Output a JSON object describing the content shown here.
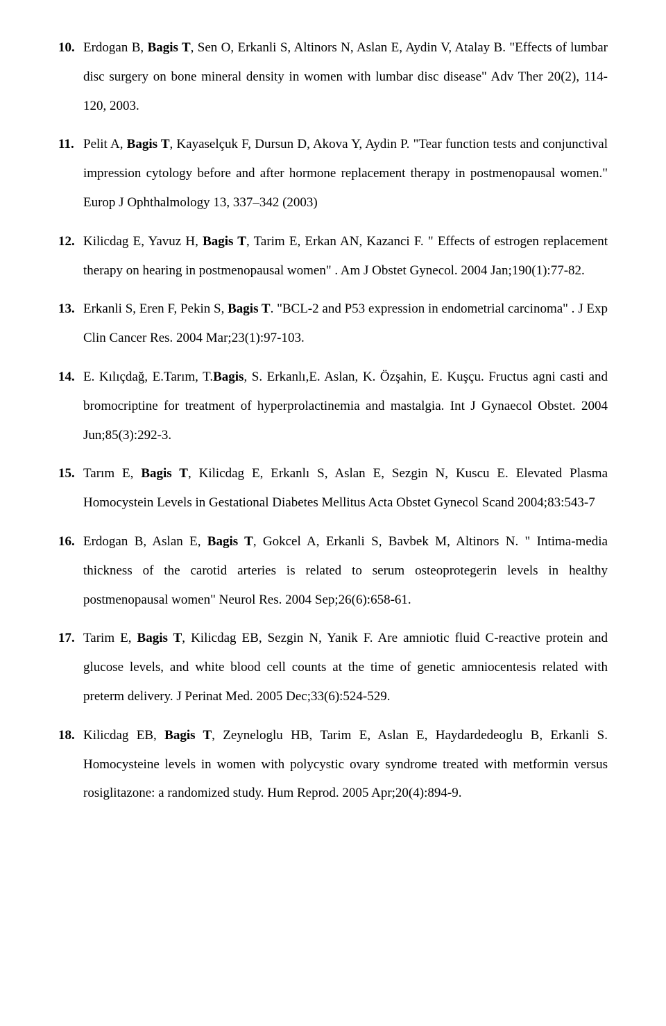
{
  "references": [
    {
      "authors_pre": "Erdogan B, ",
      "bold_author": "Bagis T",
      "continuation": ", Sen O, Erkanli S, Altinors N, Aslan E, Aydin V, Atalay B. \"Effects of lumbar disc surgery on bone mineral density in women with lumbar disc disease\" Adv Ther 20(2), 114-120, 2003."
    },
    {
      "authors_pre": "Pelit A, ",
      "bold_author": "Bagis T",
      "continuation": ", Kayaselçuk F, Dursun D, Akova Y, Aydin P. \"Tear function tests and conjunctival impression cytology before and after hormone replacement therapy in postmenopausal women.\" Europ J Ophthalmology  13, 337–342 (2003)"
    },
    {
      "authors_pre": "Kilicdag E, Yavuz H,  ",
      "bold_author": "Bagis T",
      "continuation": ", Tarim E, Erkan AN, Kazanci F. \" Effects of estrogen replacement therapy on hearing in postmenopausal women\" . Am J Obstet Gynecol. 2004 Jan;190(1):77-82."
    },
    {
      "authors_pre": "Erkanli S, Eren F, Pekin S, ",
      "bold_author": "Bagis T",
      "continuation": ". \"BCL-2 and P53 expression in endometrial carcinoma\" . J Exp Clin Cancer Res. 2004 Mar;23(1):97-103."
    },
    {
      "authors_pre": "E. Kılıçdağ, E.Tarım, T.",
      "bold_author": "Bagis",
      "continuation": ", S. Erkanlı,E. Aslan, K. Özşahin, E. Kuşçu. Fructus agni casti and bromocriptine for treatment of hyperprolactinemia and mastalgia. Int J Gynaecol Obstet. 2004 Jun;85(3):292-3."
    },
    {
      "authors_pre": "Tarım E, ",
      "bold_author": "Bagis T",
      "continuation": ", Kilicdag E, Erkanlı S, Aslan E, Sezgin N, Kuscu E. Elevated Plasma Homocystein Levels in Gestational Diabetes Mellitus  Acta Obstet Gynecol Scand 2004;83:543-7"
    },
    {
      "authors_pre": "Erdogan B, Aslan E, ",
      "bold_author": "Bagis T",
      "continuation": ", Gokcel A, Erkanli S, Bavbek M, Altinors N. \" Intima-media thickness of the carotid arteries is related to serum osteoprotegerin levels in healthy postmenopausal women\"  Neurol Res. 2004 Sep;26(6):658-61."
    },
    {
      "authors_pre": "Tarim E, ",
      "bold_author": "Bagis T",
      "continuation": ", Kilicdag EB, Sezgin N, Yanik F. Are amniotic fluid C-reactive protein and glucose levels, and white blood cell counts at the time of genetic amniocentesis related with preterm delivery. J Perinat Med. 2005 Dec;33(6):524-529."
    },
    {
      "authors_pre": "Kilicdag EB, ",
      "bold_author": "Bagis T",
      "continuation": ", Zeyneloglu HB, Tarim E, Aslan E, Haydardedeoglu B, Erkanli S. Homocysteine levels in women with polycystic ovary syndrome treated with metformin versus rosiglitazone: a randomized study. Hum Reprod. 2005 Apr;20(4):894-9."
    }
  ]
}
